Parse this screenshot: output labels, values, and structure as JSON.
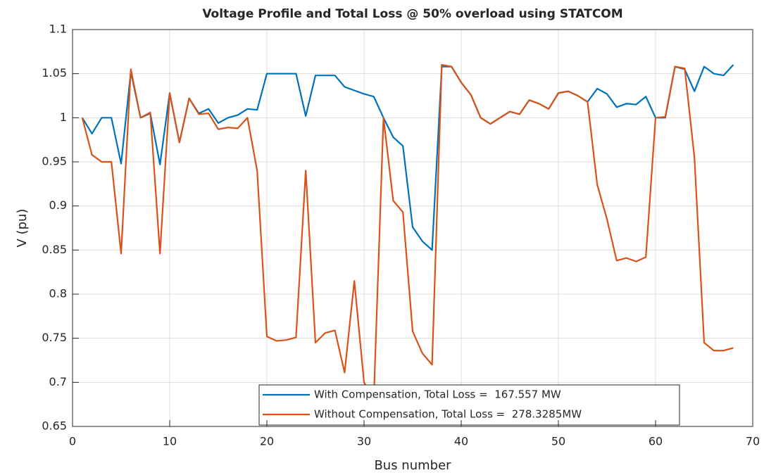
{
  "chart_data": {
    "type": "line",
    "title": "Voltage Profile and Total Loss @ 50% overload using STATCOM",
    "x_label": "Bus number",
    "y_label": "V (pu)",
    "x": [
      1,
      2,
      3,
      4,
      5,
      6,
      7,
      8,
      9,
      10,
      11,
      12,
      13,
      14,
      15,
      16,
      17,
      18,
      19,
      20,
      21,
      22,
      23,
      24,
      25,
      26,
      27,
      28,
      29,
      30,
      31,
      32,
      33,
      34,
      35,
      36,
      37,
      38,
      39,
      40,
      41,
      42,
      43,
      44,
      45,
      46,
      47,
      48,
      49,
      50,
      51,
      52,
      53,
      54,
      55,
      56,
      57,
      58,
      59,
      60,
      61,
      62,
      63,
      64,
      65,
      66,
      67,
      68
    ],
    "series": [
      {
        "name": "With Compensation, Total Loss =  167.557 MW",
        "color": "#0072bd",
        "values": [
          1.0,
          0.982,
          1.0,
          1.0,
          0.948,
          1.052,
          1.0,
          1.005,
          0.947,
          1.028,
          0.972,
          1.022,
          1.005,
          1.01,
          0.994,
          1.0,
          1.003,
          1.01,
          1.009,
          1.05,
          1.05,
          1.05,
          1.05,
          1.002,
          1.048,
          1.048,
          1.048,
          1.035,
          1.031,
          1.027,
          1.024,
          1.0,
          0.978,
          0.968,
          0.876,
          0.86,
          0.85,
          1.058,
          1.058,
          1.04,
          1.026,
          1.0,
          0.993,
          1.0,
          1.007,
          1.004,
          1.02,
          1.016,
          1.01,
          1.028,
          1.03,
          1.025,
          1.018,
          1.033,
          1.027,
          1.012,
          1.016,
          1.015,
          1.024,
          1.0,
          1.0,
          1.058,
          1.055,
          1.03,
          1.058,
          1.05,
          1.048,
          1.06
        ]
      },
      {
        "name": "Without Compensation, Total Loss =  278.3285MW",
        "color": "#d95319",
        "values": [
          1.0,
          0.958,
          0.95,
          0.95,
          0.846,
          1.055,
          1.0,
          1.006,
          0.846,
          1.028,
          0.972,
          1.022,
          1.004,
          1.005,
          0.987,
          0.989,
          0.988,
          1.0,
          0.94,
          0.752,
          0.747,
          0.748,
          0.751,
          0.94,
          0.745,
          0.756,
          0.759,
          0.711,
          0.815,
          0.7,
          0.68,
          1.0,
          0.906,
          0.893,
          0.758,
          0.733,
          0.72,
          1.06,
          1.058,
          1.04,
          1.026,
          1.0,
          0.993,
          1.0,
          1.007,
          1.004,
          1.02,
          1.016,
          1.01,
          1.028,
          1.03,
          1.025,
          1.018,
          0.924,
          0.885,
          0.838,
          0.841,
          0.837,
          0.842,
          1.0,
          1.001,
          1.058,
          1.056,
          0.955,
          0.745,
          0.736,
          0.736,
          0.739
        ]
      }
    ],
    "xlim": [
      0,
      70
    ],
    "xticks": [
      0,
      10,
      20,
      30,
      40,
      50,
      60,
      70
    ],
    "ylim": [
      0.65,
      1.1
    ],
    "yticks": [
      0.65,
      0.7,
      0.75,
      0.8,
      0.85,
      0.9,
      0.95,
      1,
      1.05,
      1.1
    ],
    "grid": true,
    "legend": "bottom"
  }
}
